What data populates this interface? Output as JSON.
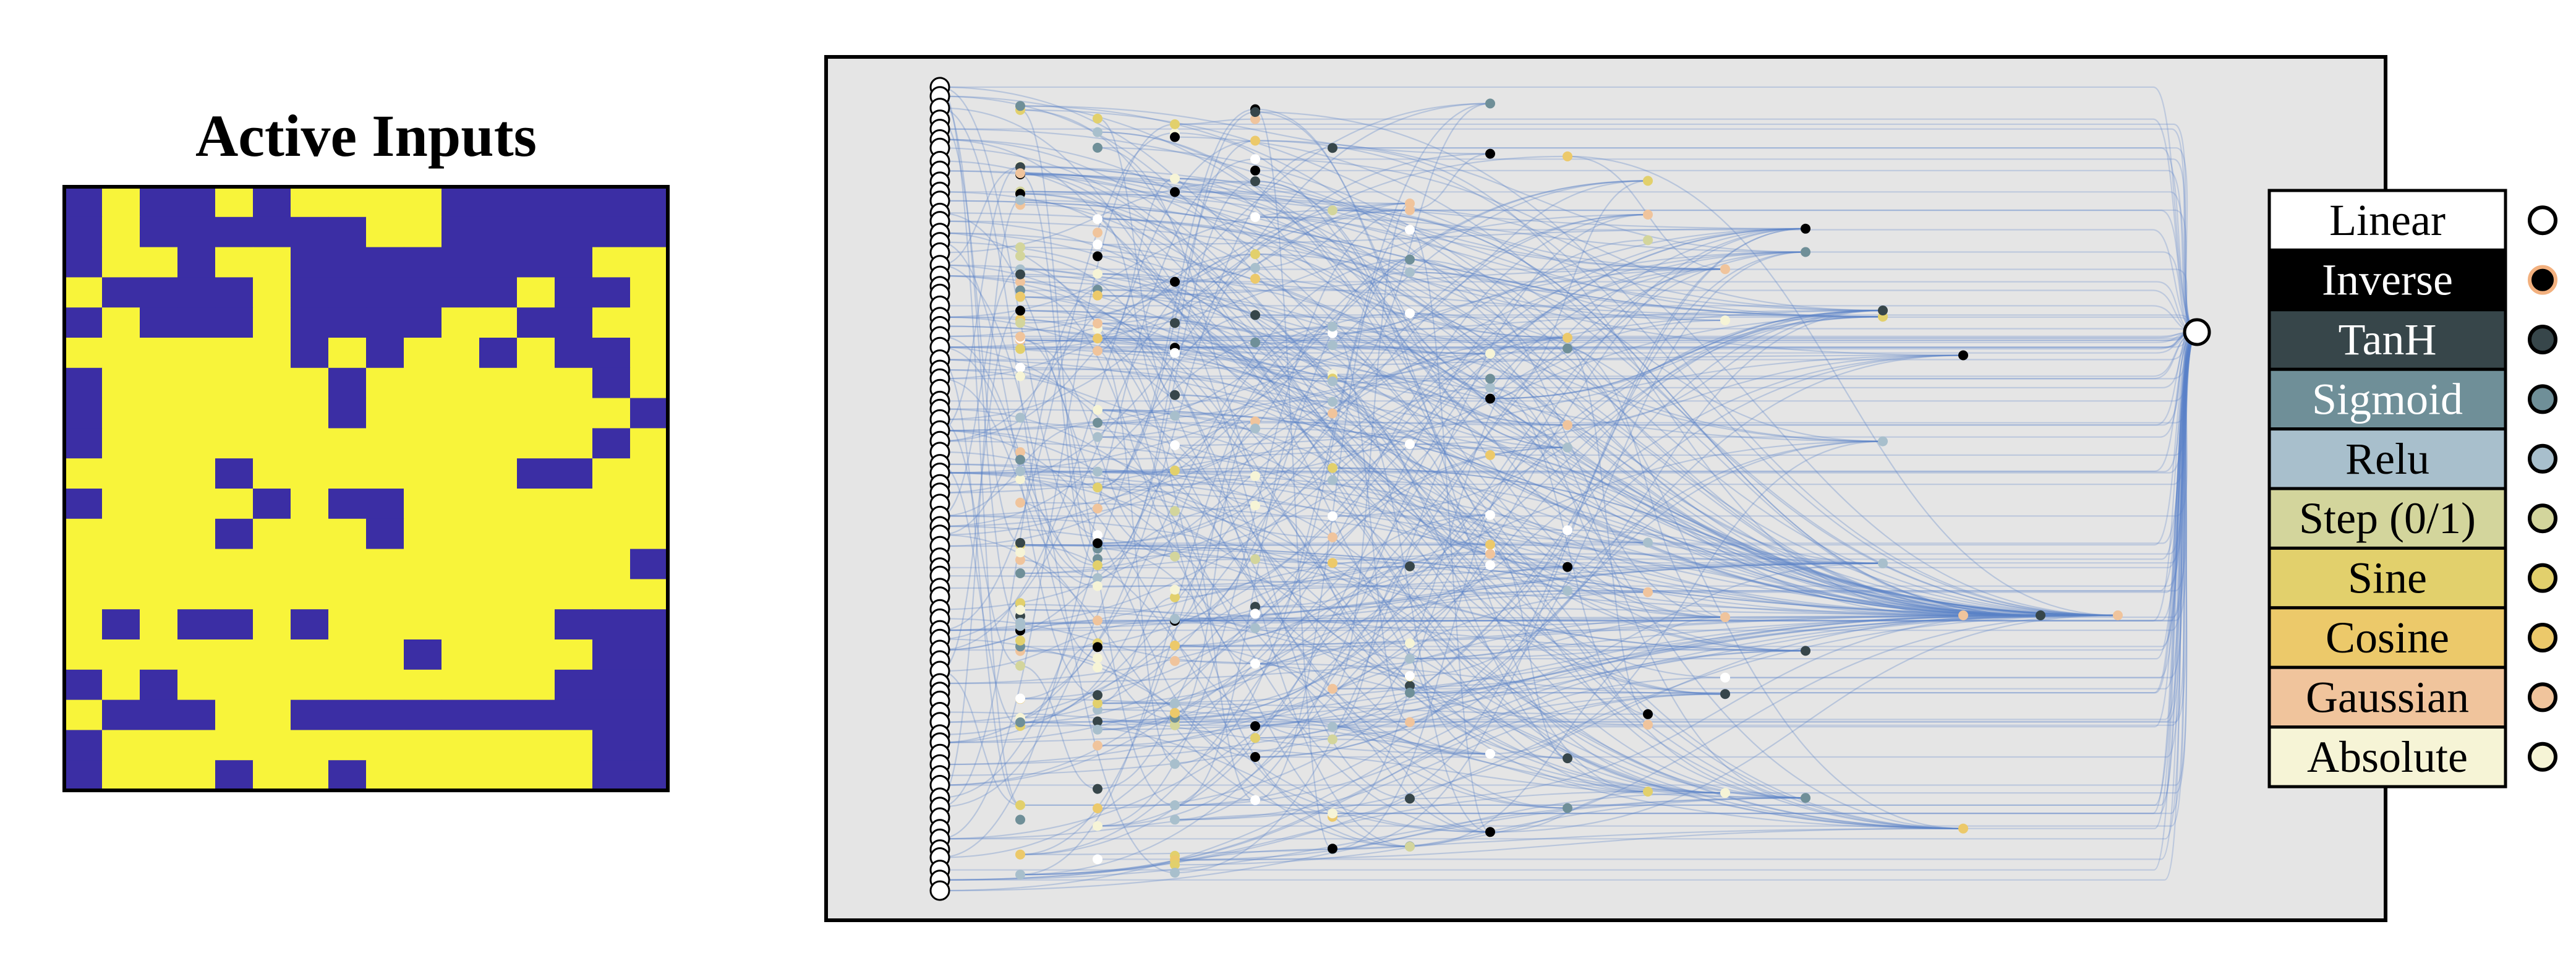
{
  "active_inputs": {
    "title": "Active Inputs",
    "colors": {
      "active": "#f8f43a",
      "inactive": "#3b2ea4"
    },
    "grid": [
      "0100101111000000",
      "0100000011000000",
      "0110110000000011",
      "1000010000001001",
      "0100010000110011",
      "1111110101101001",
      "0111111011111101",
      "0111111011111110",
      "0111111111111101",
      "1111011111110011",
      "0111101001111111",
      "1111011101111111",
      "1111111111111110",
      "1111111111111111",
      "1010010111111000",
      "1111111110111100",
      "0101111111111000",
      "1000110000000000",
      "0111111111111100",
      "0111011011111100"
    ]
  },
  "legend": {
    "items": [
      {
        "label": "Linear",
        "bg": "#ffffff",
        "text": "#000000",
        "marker": "#ffffff",
        "ring": "#000000"
      },
      {
        "label": "Inverse",
        "bg": "#000000",
        "text": "#ffffff",
        "marker": "#000000",
        "ring": "#f2b07e"
      },
      {
        "label": "TanH",
        "bg": "#37464a",
        "text": "#ffffff",
        "marker": "#37464a",
        "ring": "#000000"
      },
      {
        "label": "Sigmoid",
        "bg": "#6f8f98",
        "text": "#ffffff",
        "marker": "#6f8f98",
        "ring": "#000000"
      },
      {
        "label": "Relu",
        "bg": "#a8bfcc",
        "text": "#000000",
        "marker": "#a8bfcc",
        "ring": "#000000"
      },
      {
        "label": "Step (0/1)",
        "bg": "#d3d59c",
        "text": "#000000",
        "marker": "#d3d59c",
        "ring": "#000000"
      },
      {
        "label": "Sine",
        "bg": "#e2d06c",
        "text": "#000000",
        "marker": "#e2d06c",
        "ring": "#000000"
      },
      {
        "label": "Cosine",
        "bg": "#ecc96a",
        "text": "#000000",
        "marker": "#ecc96a",
        "ring": "#000000"
      },
      {
        "label": "Gaussian",
        "bg": "#f0c49c",
        "text": "#000000",
        "marker": "#f0c49c",
        "ring": "#000000"
      },
      {
        "label": "Absolute",
        "bg": "#f6f4d6",
        "text": "#000000",
        "marker": "#f6f4d6",
        "ring": "#000000"
      }
    ]
  },
  "network": {
    "panel_bg": "#e5e5e5",
    "edge_color": "#5a82c8",
    "input_fill": "#ffffff",
    "output_fill": "#ffffff"
  }
}
